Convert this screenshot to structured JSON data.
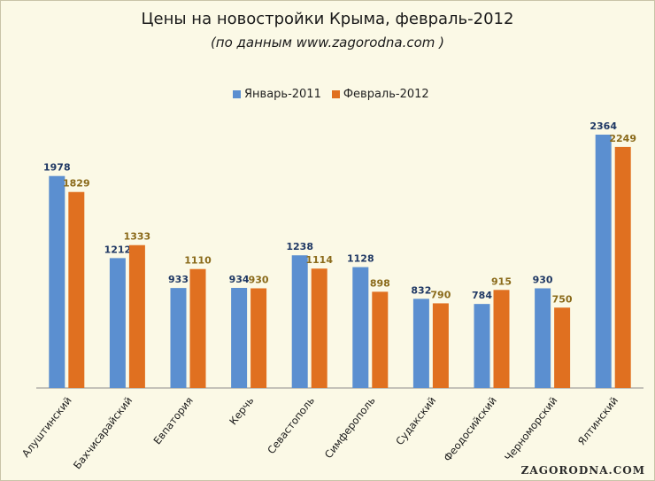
{
  "chart_data": {
    "type": "bar",
    "title": "Цены на новостройки Крыма, февраль-2012",
    "subtitle": "(по данным www.zagorodna.com )",
    "categories": [
      "Алуштинский",
      "Бахчисарайский",
      "Евпатория",
      "Керчь",
      "Севастополь",
      "Симферополь",
      "Судакский",
      "Феодосийский",
      "Черноморский",
      "Ялтинский"
    ],
    "series": [
      {
        "name": "Январь-2011",
        "color": "#5b8fd0",
        "label_color": "#1f3864",
        "values": [
          1978,
          1212,
          933,
          934,
          1238,
          1128,
          832,
          784,
          930,
          2364
        ]
      },
      {
        "name": "Февраль-2012",
        "color": "#e07020",
        "label_color": "#8a6a1a",
        "values": [
          1829,
          1333,
          1110,
          930,
          1114,
          898,
          790,
          915,
          750,
          2249
        ]
      }
    ],
    "ylim": [
      0,
      2600
    ],
    "grid": false,
    "legend_position": "top-center"
  },
  "watermark": "ZAGORODNA.COM"
}
